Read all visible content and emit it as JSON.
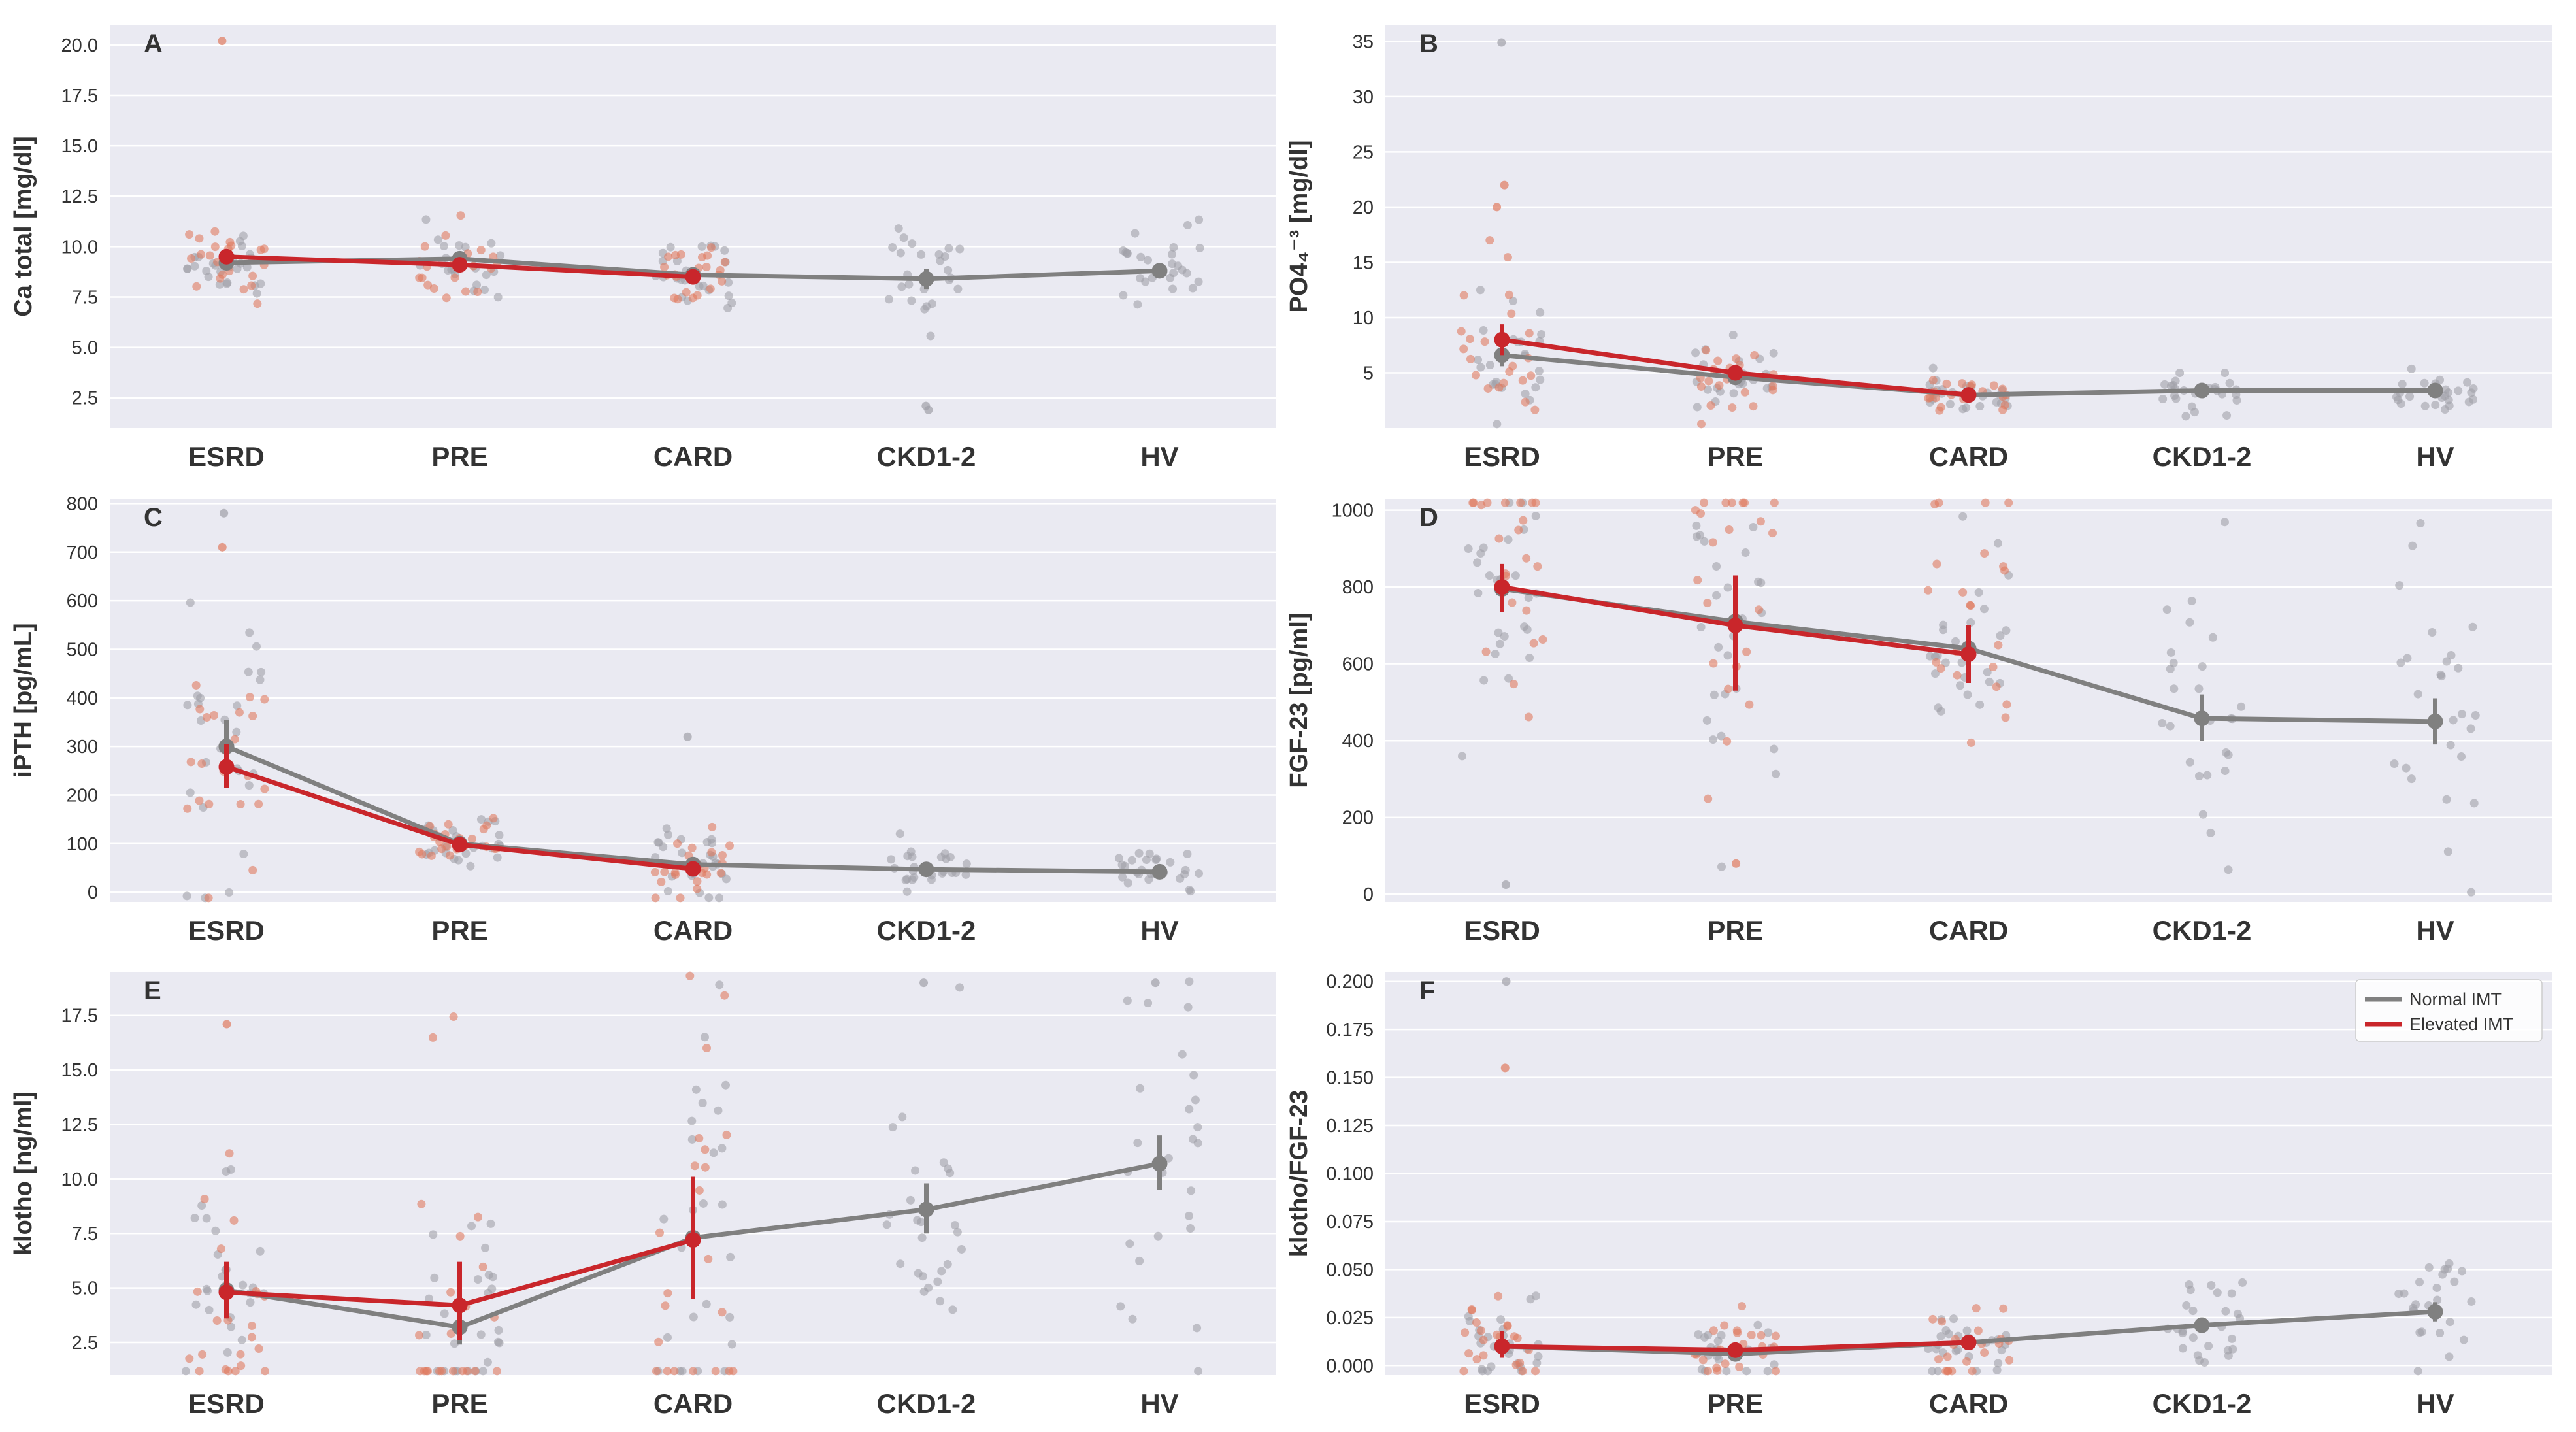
{
  "legend": {
    "series": [
      {
        "name": "Normal IMT",
        "color": "#808080"
      },
      {
        "name": "Elevated IMT",
        "color": "#c9262b"
      }
    ]
  },
  "chart_data": [
    {
      "panel": "A",
      "type": "scatter",
      "ylabel": "Ca total [mg/dl]",
      "ylim": [
        1,
        21
      ],
      "yticks": [
        "2.5",
        "5.0",
        "7.5",
        "10.0",
        "12.5",
        "15.0",
        "17.5",
        "20.0"
      ],
      "categories": [
        "ESRD",
        "PRE",
        "CARD",
        "CKD1-2",
        "HV"
      ],
      "series": [
        {
          "name": "Normal IMT",
          "means": [
            9.2,
            9.4,
            8.6,
            8.4,
            8.8
          ],
          "ci": [
            [
              8.9,
              9.5
            ],
            [
              9.1,
              9.7
            ],
            [
              8.3,
              8.9
            ],
            [
              7.9,
              8.9
            ],
            [
              8.5,
              9.1
            ]
          ]
        },
        {
          "name": "Elevated IMT",
          "means": [
            9.5,
            9.1,
            8.5,
            null,
            null
          ],
          "ci": [
            [
              9.2,
              9.8
            ],
            [
              8.8,
              9.4
            ],
            [
              8.2,
              8.8
            ],
            null,
            null
          ]
        }
      ],
      "outliers": [
        {
          "category": "ESRD",
          "value": 20.2,
          "series": "Elevated IMT"
        },
        {
          "category": "CKD1-2",
          "value": 1.9,
          "series": "Normal IMT"
        },
        {
          "category": "CKD1-2",
          "value": 2.1,
          "series": "Normal IMT"
        }
      ]
    },
    {
      "panel": "B",
      "type": "scatter",
      "ylabel": "PO4₄⁻³ [mg/dl]",
      "ylim": [
        0,
        36.5
      ],
      "yticks": [
        "5",
        "10",
        "15",
        "20",
        "25",
        "30",
        "35"
      ],
      "categories": [
        "ESRD",
        "PRE",
        "CARD",
        "CKD1-2",
        "HV"
      ],
      "series": [
        {
          "name": "Normal IMT",
          "means": [
            6.6,
            4.6,
            3.0,
            3.4,
            3.4
          ],
          "ci": [
            [
              5.6,
              7.6
            ],
            [
              4.2,
              5.0
            ],
            [
              2.8,
              3.2
            ],
            [
              3.1,
              3.7
            ],
            [
              3.1,
              3.7
            ]
          ]
        },
        {
          "name": "Elevated IMT",
          "means": [
            8.0,
            5.0,
            3.0,
            null,
            null
          ],
          "ci": [
            [
              6.6,
              9.4
            ],
            [
              4.5,
              5.5
            ],
            [
              2.8,
              3.2
            ],
            null,
            null
          ]
        }
      ],
      "outliers": [
        {
          "category": "ESRD",
          "value": 34.9,
          "series": "Normal IMT"
        },
        {
          "category": "ESRD",
          "value": 22,
          "series": "Elevated IMT"
        },
        {
          "category": "ESRD",
          "value": 20,
          "series": "Elevated IMT"
        }
      ]
    },
    {
      "panel": "C",
      "type": "scatter",
      "ylabel": "iPTH [pg/mL]",
      "ylim": [
        -20,
        810
      ],
      "yticks": [
        "0",
        "100",
        "200",
        "300",
        "400",
        "500",
        "600",
        "700",
        "800"
      ],
      "categories": [
        "ESRD",
        "PRE",
        "CARD",
        "CKD1-2",
        "HV"
      ],
      "series": [
        {
          "name": "Normal IMT",
          "means": [
            300,
            100,
            57,
            47,
            42
          ],
          "ci": [
            [
              250,
              355
            ],
            [
              92,
              108
            ],
            [
              45,
              72
            ],
            [
              40,
              54
            ],
            [
              35,
              50
            ]
          ]
        },
        {
          "name": "Elevated IMT",
          "means": [
            258,
            98,
            48,
            null,
            null
          ],
          "ci": [
            [
              215,
              305
            ],
            [
              90,
              106
            ],
            [
              38,
              60
            ],
            null,
            null
          ]
        }
      ],
      "outliers": [
        {
          "category": "ESRD",
          "value": 780,
          "series": "Normal IMT"
        },
        {
          "category": "ESRD",
          "value": 710,
          "series": "Elevated IMT"
        },
        {
          "category": "CARD",
          "value": 320,
          "series": "Normal IMT"
        }
      ]
    },
    {
      "panel": "D",
      "type": "scatter",
      "ylabel": "FGF-23 [pg/ml]",
      "ylim": [
        -20,
        1030
      ],
      "yticks": [
        "0",
        "200",
        "400",
        "600",
        "800",
        "1000"
      ],
      "categories": [
        "ESRD",
        "PRE",
        "CARD",
        "CKD1-2",
        "HV"
      ],
      "series": [
        {
          "name": "Normal IMT",
          "means": [
            795,
            710,
            640,
            458,
            450
          ],
          "ci": [
            [
              735,
              855
            ],
            [
              640,
              780
            ],
            [
              595,
              685
            ],
            [
              400,
              520
            ],
            [
              390,
              510
            ]
          ]
        },
        {
          "name": "Elevated IMT",
          "means": [
            800,
            700,
            625,
            null,
            null
          ],
          "ci": [
            [
              735,
              860
            ],
            [
              530,
              830
            ],
            [
              550,
              700
            ],
            null,
            null
          ]
        }
      ],
      "outliers": [
        {
          "category": "ESRD",
          "value": 25,
          "series": "Normal IMT"
        },
        {
          "category": "PRE",
          "value": 80,
          "series": "Elevated IMT"
        }
      ]
    },
    {
      "panel": "E",
      "type": "scatter",
      "ylabel": "klotho [ng/ml]",
      "ylim": [
        1,
        19.5
      ],
      "yticks": [
        "2.5",
        "5.0",
        "7.5",
        "10.0",
        "12.5",
        "15.0",
        "17.5"
      ],
      "categories": [
        "ESRD",
        "PRE",
        "CARD",
        "CKD1-2",
        "HV"
      ],
      "series": [
        {
          "name": "Normal IMT",
          "means": [
            4.9,
            3.2,
            7.3,
            8.6,
            10.7
          ],
          "ci": [
            [
              4.0,
              5.8
            ],
            [
              2.4,
              4.1
            ],
            [
              5.6,
              9.0
            ],
            [
              7.5,
              9.8
            ],
            [
              9.5,
              12.0
            ]
          ]
        },
        {
          "name": "Elevated IMT",
          "means": [
            4.8,
            4.2,
            7.2,
            null,
            null
          ],
          "ci": [
            [
              3.6,
              6.2
            ],
            [
              2.6,
              6.2
            ],
            [
              4.5,
              10.1
            ],
            null,
            null
          ]
        }
      ],
      "outliers": [
        {
          "category": "ESRD",
          "value": 17.1,
          "series": "Elevated IMT"
        },
        {
          "category": "CKD1-2",
          "value": 19.0,
          "series": "Normal IMT"
        },
        {
          "category": "HV",
          "value": 19.0,
          "series": "Normal IMT"
        }
      ]
    },
    {
      "panel": "F",
      "type": "scatter",
      "ylabel": "klotho/FGF-23",
      "ylim": [
        -0.005,
        0.205
      ],
      "yticks": [
        "0.000",
        "0.025",
        "0.050",
        "0.075",
        "0.100",
        "0.125",
        "0.150",
        "0.175",
        "0.200"
      ],
      "categories": [
        "ESRD",
        "PRE",
        "CARD",
        "CKD1-2",
        "HV"
      ],
      "series": [
        {
          "name": "Normal IMT",
          "means": [
            0.01,
            0.006,
            0.012,
            0.021,
            0.028
          ],
          "ci": [
            [
              0.006,
              0.014
            ],
            [
              0.004,
              0.008
            ],
            [
              0.009,
              0.016
            ],
            [
              0.017,
              0.025
            ],
            [
              0.023,
              0.033
            ]
          ]
        },
        {
          "name": "Elevated IMT",
          "means": [
            0.01,
            0.008,
            0.012,
            null,
            null
          ],
          "ci": [
            [
              0.004,
              0.018
            ],
            [
              0.005,
              0.011
            ],
            [
              0.008,
              0.016
            ],
            null,
            null
          ]
        }
      ],
      "outliers": [
        {
          "category": "ESRD",
          "value": 0.2,
          "series": "Normal IMT"
        },
        {
          "category": "ESRD",
          "value": 0.155,
          "series": "Elevated IMT"
        }
      ]
    }
  ]
}
